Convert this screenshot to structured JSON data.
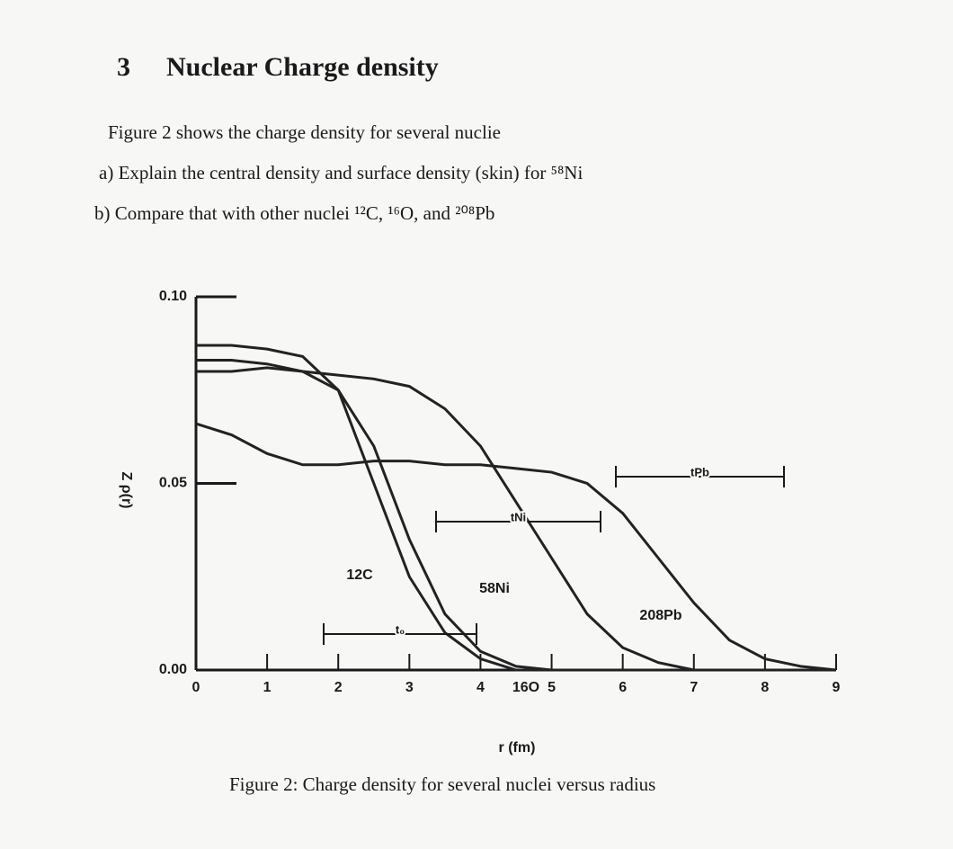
{
  "section": {
    "number": "3",
    "title": "Nuclear Charge density"
  },
  "paragraphs": [
    "Figure 2 shows the charge density for several nuclie",
    "a) Explain the central density and surface density (skin) for ⁵⁸Ni",
    "b) Compare that with other nuclei ¹²C, ¹⁶O, and ²⁰⁸Pb"
  ],
  "caption": "Figure 2: Charge density for several nuclei versus radius",
  "chart_data": {
    "type": "line",
    "x_label": "r (fm)",
    "y_label": "Z ρ(r)",
    "x": [
      0,
      0.5,
      1,
      1.5,
      2,
      2.5,
      3,
      3.5,
      4,
      4.5,
      5,
      5.5,
      6,
      6.5,
      7,
      7.5,
      8,
      8.5,
      9
    ],
    "series": [
      {
        "name": "12C",
        "color": "#222222",
        "values": [
          0.087,
          0.087,
          0.086,
          0.084,
          0.075,
          0.05,
          0.025,
          0.01,
          0.003,
          0,
          0,
          0,
          0,
          0,
          0,
          0,
          0,
          0,
          0
        ]
      },
      {
        "name": "16O",
        "color": "#222222",
        "values": [
          0.083,
          0.083,
          0.082,
          0.08,
          0.075,
          0.06,
          0.035,
          0.015,
          0.005,
          0.001,
          0,
          0,
          0,
          0,
          0,
          0,
          0,
          0,
          0
        ]
      },
      {
        "name": "58Ni",
        "color": "#222222",
        "values": [
          0.08,
          0.08,
          0.081,
          0.08,
          0.079,
          0.078,
          0.076,
          0.07,
          0.06,
          0.045,
          0.03,
          0.015,
          0.006,
          0.002,
          0,
          0,
          0,
          0,
          0
        ]
      },
      {
        "name": "208Pb",
        "color": "#222222",
        "values": [
          0.066,
          0.063,
          0.058,
          0.055,
          0.055,
          0.056,
          0.056,
          0.055,
          0.055,
          0.054,
          0.053,
          0.05,
          0.042,
          0.03,
          0.018,
          0.008,
          0.003,
          0.001,
          0
        ]
      }
    ],
    "annotations": [
      "t₀",
      "tNi",
      "tPb"
    ],
    "xlim": [
      0,
      9
    ],
    "ylim": [
      0,
      0.1
    ],
    "xticks": [
      0,
      1,
      2,
      3,
      4,
      5,
      6,
      7,
      8,
      9
    ],
    "yticks": [
      {
        "value": 0,
        "label": "0.00"
      },
      {
        "value": 0.05,
        "label": "0.05"
      },
      {
        "value": 0.1,
        "label": "0.10"
      }
    ],
    "grid": false
  }
}
